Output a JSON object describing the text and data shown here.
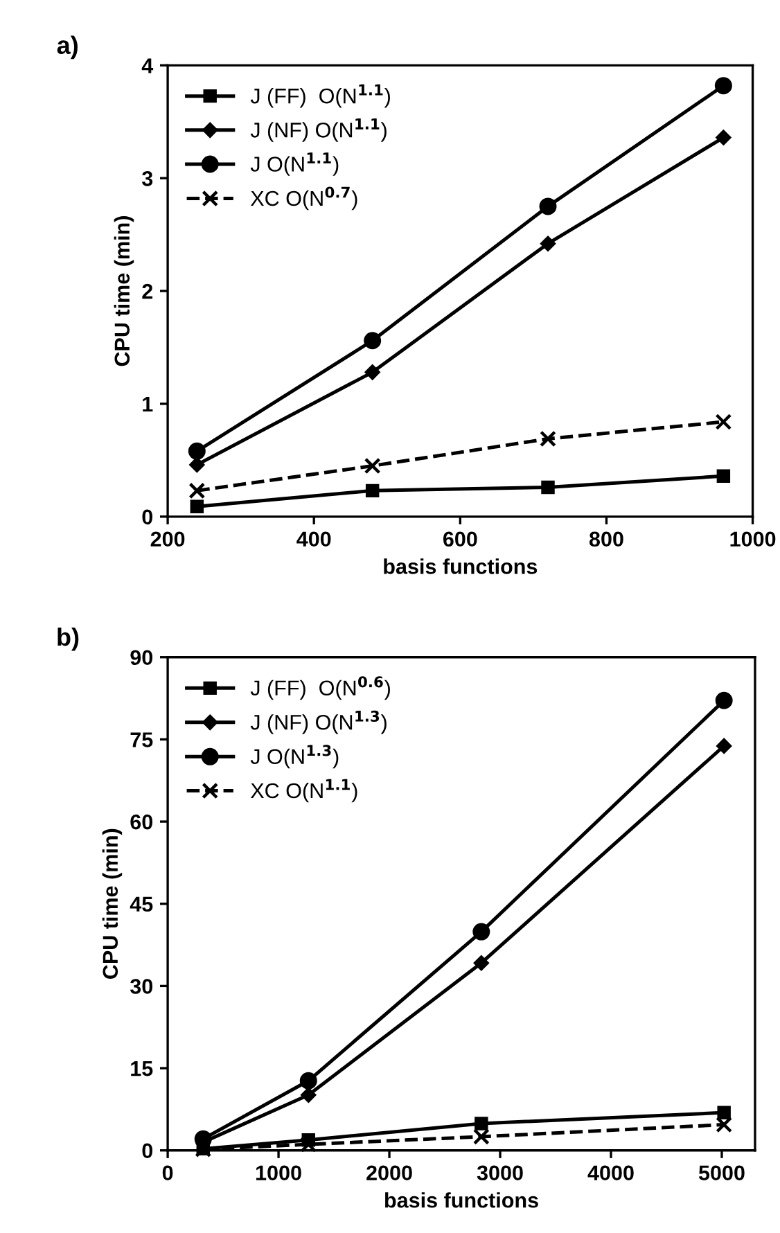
{
  "chart_data": [
    {
      "type": "line",
      "title": "a)",
      "xlabel": "basis functions",
      "ylabel": "CPU time (min)",
      "xlim": [
        200,
        1000
      ],
      "xticks": [
        200,
        400,
        600,
        800,
        1000
      ],
      "ylim": [
        0,
        4
      ],
      "yticks": [
        0,
        1,
        2,
        3,
        4
      ],
      "grid": false,
      "legend": "top left",
      "x": [
        240,
        480,
        720,
        960
      ],
      "series": [
        {
          "name": "J (FF)  O(N$^{1.1}$)",
          "color": "#000000",
          "marker": "square",
          "line_style": "solid",
          "values": [
            0.09,
            0.23,
            0.26,
            0.36
          ]
        },
        {
          "name": "J (NF) O(N$^{1.1}$)",
          "color": "#000000",
          "marker": "diamond",
          "line_style": "solid",
          "values": [
            0.46,
            1.28,
            2.42,
            3.36
          ]
        },
        {
          "name": "J O(N$^{1.1}$)",
          "color": "#000000",
          "marker": "circle",
          "line_style": "solid",
          "values": [
            0.58,
            1.56,
            2.75,
            3.82
          ]
        },
        {
          "name": "XC O(N$^{0.7}$)",
          "color": "#000000",
          "marker": "cross",
          "line_style": "dashed",
          "values": [
            0.23,
            0.45,
            0.69,
            0.84
          ]
        }
      ]
    },
    {
      "type": "line",
      "title": "b)",
      "xlabel": "basis functions",
      "ylabel": "CPU time (min)",
      "xlim": [
        0,
        5300
      ],
      "xticks": [
        0,
        1000,
        2000,
        3000,
        4000,
        5000
      ],
      "ylim": [
        0,
        90
      ],
      "yticks": [
        0,
        15,
        30,
        45,
        60,
        75,
        90
      ],
      "grid": false,
      "legend": "top left",
      "x": [
        320,
        1270,
        2830,
        5020
      ],
      "series": [
        {
          "name": "J (FF)  O(N$^{0.6}$)",
          "color": "#000000",
          "marker": "square",
          "line_style": "solid",
          "values": [
            0.3,
            1.9,
            4.9,
            6.9
          ]
        },
        {
          "name": "J (NF) O(N$^{1.3}$)",
          "color": "#000000",
          "marker": "diamond",
          "line_style": "solid",
          "values": [
            1.5,
            10.1,
            34.2,
            73.8
          ]
        },
        {
          "name": "J O(N$^{1.3}$)",
          "color": "#000000",
          "marker": "circle",
          "line_style": "solid",
          "values": [
            2.1,
            12.7,
            39.9,
            82.1
          ]
        },
        {
          "name": "XC O(N$^{1.1}$)",
          "color": "#000000",
          "marker": "cross",
          "line_style": "dashed",
          "values": [
            0.2,
            1.1,
            2.5,
            4.7
          ]
        }
      ]
    }
  ]
}
